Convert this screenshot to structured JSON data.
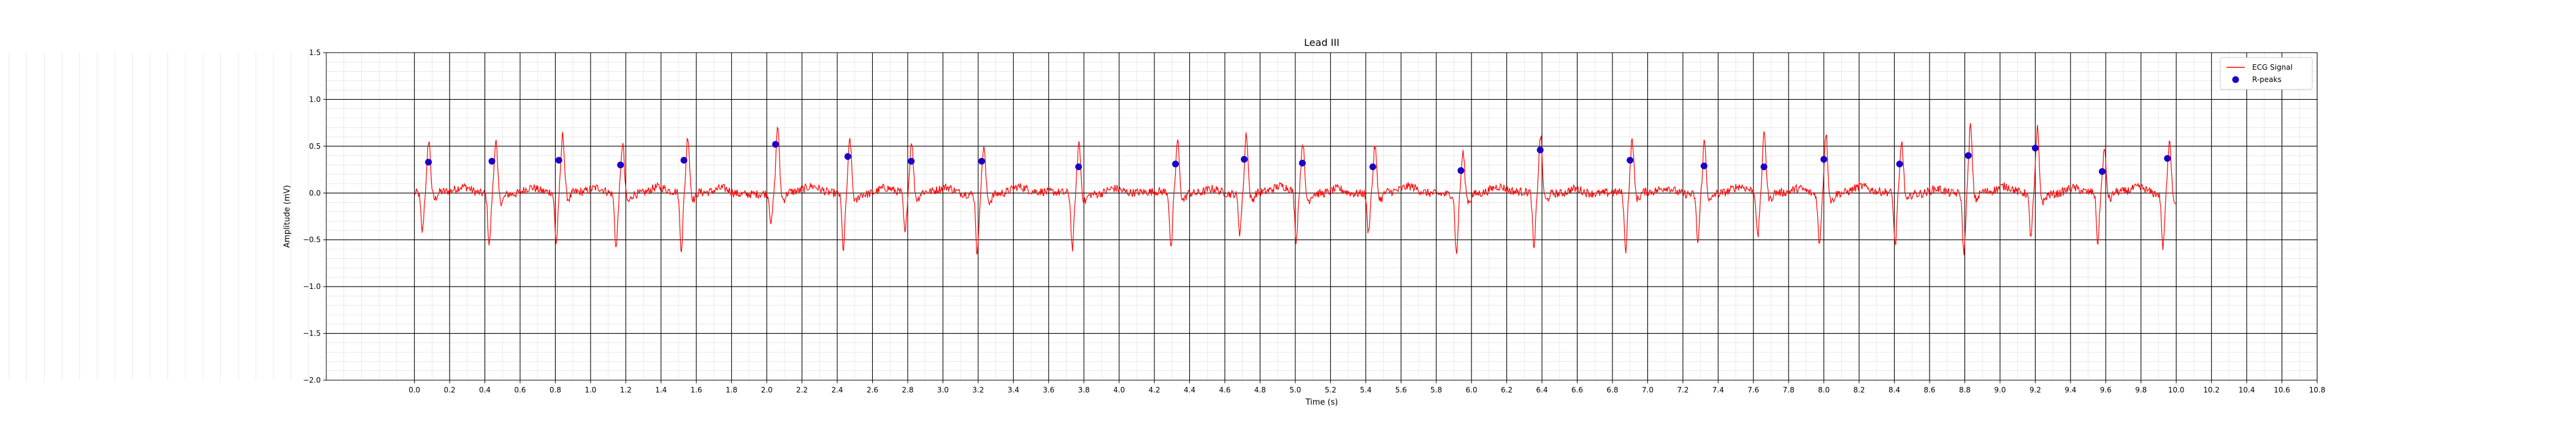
{
  "chart_data": {
    "type": "line",
    "title": "Lead III",
    "xlabel": "Time (s)",
    "ylabel": "Amplitude (mV)",
    "xlim": [
      -0.5,
      10.8
    ],
    "ylim": [
      -2.0,
      1.5
    ],
    "x_ticks": [
      "0.0",
      "0.2",
      "0.4",
      "0.6",
      "0.8",
      "1.0",
      "1.2",
      "1.4",
      "1.6",
      "1.8",
      "2.0",
      "2.2",
      "2.4",
      "2.6",
      "2.8",
      "3.0",
      "3.2",
      "3.4",
      "3.6",
      "3.8",
      "4.0",
      "4.2",
      "4.4",
      "4.6",
      "4.8",
      "5.0",
      "5.2",
      "5.4",
      "5.6",
      "5.8",
      "6.0",
      "6.2",
      "6.4",
      "6.6",
      "6.8",
      "7.0",
      "7.2",
      "7.4",
      "7.6",
      "7.8",
      "8.0",
      "8.2",
      "8.4",
      "8.6",
      "8.8",
      "9.0",
      "9.2",
      "9.4",
      "9.6",
      "9.8",
      "10.0",
      "10.2",
      "10.4",
      "10.6",
      "10.8"
    ],
    "y_ticks": [
      "1.5",
      "1.0",
      "0.5",
      "0.0",
      "−0.5",
      "−1.0",
      "−1.5",
      "−2.0"
    ],
    "grid": true,
    "legend_position": "top-right",
    "series": [
      {
        "name": "ECG Signal",
        "kind": "line",
        "color": "#ff0000",
        "x_start": 0.0,
        "x_end": 10.0,
        "beats": [
          {
            "x": 0.06,
            "s": -0.42,
            "r": 0.56
          },
          {
            "x": 0.44,
            "s": -0.55,
            "r": 0.58
          },
          {
            "x": 0.82,
            "s": -0.55,
            "r": 0.62
          },
          {
            "x": 1.16,
            "s": -0.58,
            "r": 0.55
          },
          {
            "x": 1.53,
            "s": -0.62,
            "r": 0.6
          },
          {
            "x": 2.04,
            "s": -0.32,
            "r": 0.72
          },
          {
            "x": 2.45,
            "s": -0.6,
            "r": 0.6
          },
          {
            "x": 2.8,
            "s": -0.45,
            "r": 0.55
          },
          {
            "x": 3.21,
            "s": -0.65,
            "r": 0.52
          },
          {
            "x": 3.75,
            "s": -0.6,
            "r": 0.55
          },
          {
            "x": 4.31,
            "s": -0.62,
            "r": 0.56
          },
          {
            "x": 4.7,
            "s": -0.42,
            "r": 0.65
          },
          {
            "x": 5.02,
            "s": -0.52,
            "r": 0.55
          },
          {
            "x": 5.43,
            "s": -0.42,
            "r": 0.5
          },
          {
            "x": 5.93,
            "s": -0.65,
            "r": 0.45
          },
          {
            "x": 6.37,
            "s": -0.62,
            "r": 0.62
          },
          {
            "x": 6.89,
            "s": -0.63,
            "r": 0.56
          },
          {
            "x": 7.3,
            "s": -0.52,
            "r": 0.57
          },
          {
            "x": 7.64,
            "s": -0.5,
            "r": 0.65
          },
          {
            "x": 7.99,
            "s": -0.55,
            "r": 0.66
          },
          {
            "x": 8.42,
            "s": -0.57,
            "r": 0.55
          },
          {
            "x": 8.81,
            "s": -0.66,
            "r": 0.72
          },
          {
            "x": 9.19,
            "s": -0.45,
            "r": 0.7
          },
          {
            "x": 9.57,
            "s": -0.55,
            "r": 0.45
          },
          {
            "x": 9.94,
            "s": -0.58,
            "r": 0.6
          }
        ]
      },
      {
        "name": "R-peaks",
        "kind": "scatter",
        "color": "#1a00c8",
        "x": [
          0.08,
          0.44,
          0.82,
          1.17,
          1.53,
          2.05,
          2.46,
          2.82,
          3.22,
          3.77,
          4.32,
          4.71,
          5.04,
          5.44,
          5.94,
          6.39,
          6.9,
          7.32,
          7.66,
          8.0,
          8.43,
          8.82,
          9.2,
          9.58,
          9.95
        ],
        "y": [
          0.33,
          0.34,
          0.35,
          0.3,
          0.35,
          0.52,
          0.39,
          0.34,
          0.34,
          0.28,
          0.31,
          0.36,
          0.32,
          0.28,
          0.24,
          0.46,
          0.35,
          0.29,
          0.28,
          0.36,
          0.31,
          0.4,
          0.48,
          0.23,
          0.37
        ]
      }
    ]
  }
}
